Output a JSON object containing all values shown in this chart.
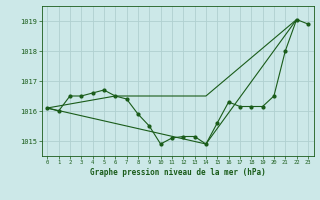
{
  "title": "Graphe pression niveau de la mer (hPa)",
  "bg_color": "#cce8e8",
  "grid_color": "#b0d0d0",
  "line_color": "#1a5c1a",
  "xlim": [
    -0.5,
    23.5
  ],
  "ylim": [
    1014.5,
    1019.5
  ],
  "yticks": [
    1015,
    1016,
    1017,
    1018,
    1019
  ],
  "xticks": [
    0,
    1,
    2,
    3,
    4,
    5,
    6,
    7,
    8,
    9,
    10,
    11,
    12,
    13,
    14,
    15,
    16,
    17,
    18,
    19,
    20,
    21,
    22,
    23
  ],
  "series": {
    "line1_x": [
      0,
      1,
      2,
      3,
      4,
      5,
      6,
      7,
      8,
      9,
      10,
      11,
      12,
      13,
      14,
      15,
      16,
      17,
      18,
      19,
      20,
      21,
      22,
      23
    ],
    "line1_y": [
      1016.1,
      1016.0,
      1016.5,
      1016.5,
      1016.6,
      1016.7,
      1016.5,
      1016.4,
      1015.9,
      1015.5,
      1014.9,
      1015.1,
      1015.15,
      1015.15,
      1014.9,
      1015.6,
      1016.3,
      1016.15,
      1016.15,
      1016.15,
      1016.5,
      1018.0,
      1019.05,
      1018.9
    ],
    "line2_x": [
      0,
      6,
      14,
      22
    ],
    "line2_y": [
      1016.1,
      1016.5,
      1016.5,
      1019.05
    ],
    "line3_x": [
      0,
      14,
      22
    ],
    "line3_y": [
      1016.1,
      1014.9,
      1019.05
    ]
  }
}
